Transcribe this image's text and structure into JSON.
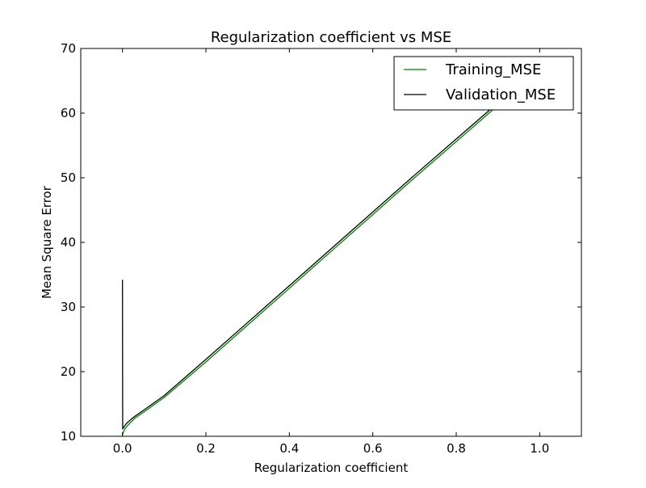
{
  "chart_data": {
    "type": "line",
    "title": "Regularization coefficient vs MSE",
    "xlabel": "Regularization coefficient",
    "ylabel": "Mean Square Error",
    "xlim": [
      -0.1,
      1.1
    ],
    "ylim": [
      10,
      70
    ],
    "x_ticks": [
      0.0,
      0.2,
      0.4,
      0.6,
      0.8,
      1.0
    ],
    "x_tick_labels": [
      "0.0",
      "0.2",
      "0.4",
      "0.6",
      "0.8",
      "1.0"
    ],
    "y_ticks": [
      10,
      20,
      30,
      40,
      50,
      60,
      70
    ],
    "y_tick_labels": [
      "10",
      "20",
      "30",
      "40",
      "50",
      "60",
      "70"
    ],
    "grid": false,
    "legend_position": "top-right",
    "series": [
      {
        "name": "Training_MSE",
        "color": "#008000",
        "x": [
          0.0,
          0.002,
          0.005,
          0.01,
          0.02,
          0.03,
          0.05,
          0.1,
          0.2,
          0.3,
          0.4,
          0.5,
          0.6,
          0.7,
          0.8,
          0.9,
          1.0
        ],
        "y": [
          10.2,
          10.6,
          11.1,
          11.5,
          12.2,
          12.8,
          13.7,
          16.0,
          21.5,
          27.2,
          32.9,
          38.6,
          44.3,
          50.0,
          55.6,
          61.2,
          66.9
        ]
      },
      {
        "name": "Validation_MSE",
        "color": "#000000",
        "x": [
          0.0,
          0.0005,
          0.002,
          0.005,
          0.01,
          0.02,
          0.03,
          0.05,
          0.1,
          0.2,
          0.3,
          0.4,
          0.5,
          0.6,
          0.7,
          0.8,
          0.9,
          1.0
        ],
        "y": [
          34.2,
          11.2,
          11.3,
          11.6,
          12.0,
          12.6,
          13.1,
          14.0,
          16.3,
          21.9,
          27.6,
          33.3,
          39.0,
          44.7,
          50.4,
          56.0,
          61.6,
          67.3
        ]
      }
    ]
  }
}
